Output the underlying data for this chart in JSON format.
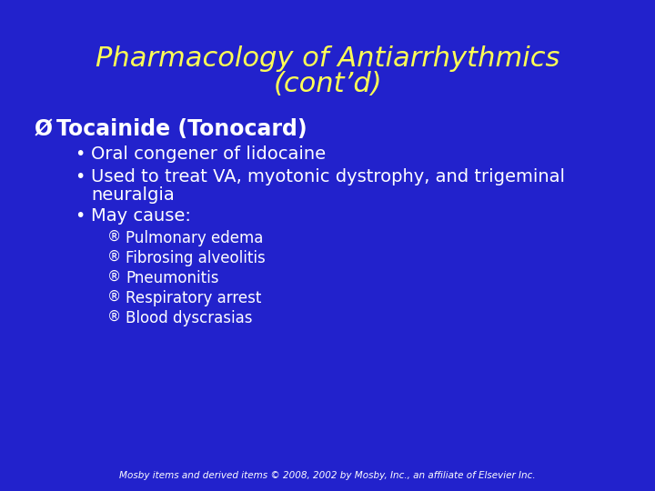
{
  "title_line1": "Pharmacology of Antiarrhythmics",
  "title_line2": "(cont’d)",
  "title_color": "#FFFF55",
  "background_color": "#2222CC",
  "text_color": "#FFFFFF",
  "title_fontsize": 22,
  "heading_fontsize": 17,
  "bullet_fontsize": 14,
  "sub_bullet_fontsize": 12,
  "footer_text": "Mosby items and derived items © 2008, 2002 by Mosby, Inc., an affiliate of Elsevier Inc.",
  "footer_fontsize": 7.5,
  "heading": "Tocainide (Tonocard)",
  "bullet1": "Oral congener of lidocaine",
  "bullet2_line1": "Used to treat VA, myotonic dystrophy, and trigeminal",
  "bullet2_line2": "neuralgia",
  "bullet3": "May cause:",
  "sub_bullets": [
    "Pulmonary edema",
    "Fibrosing alveolitis",
    "Pneumonitis",
    "Respiratory arrest",
    "Blood dyscrasias"
  ],
  "arrow_symbol": "Ø",
  "bullet_symbol": "•",
  "sub_symbol": "®"
}
